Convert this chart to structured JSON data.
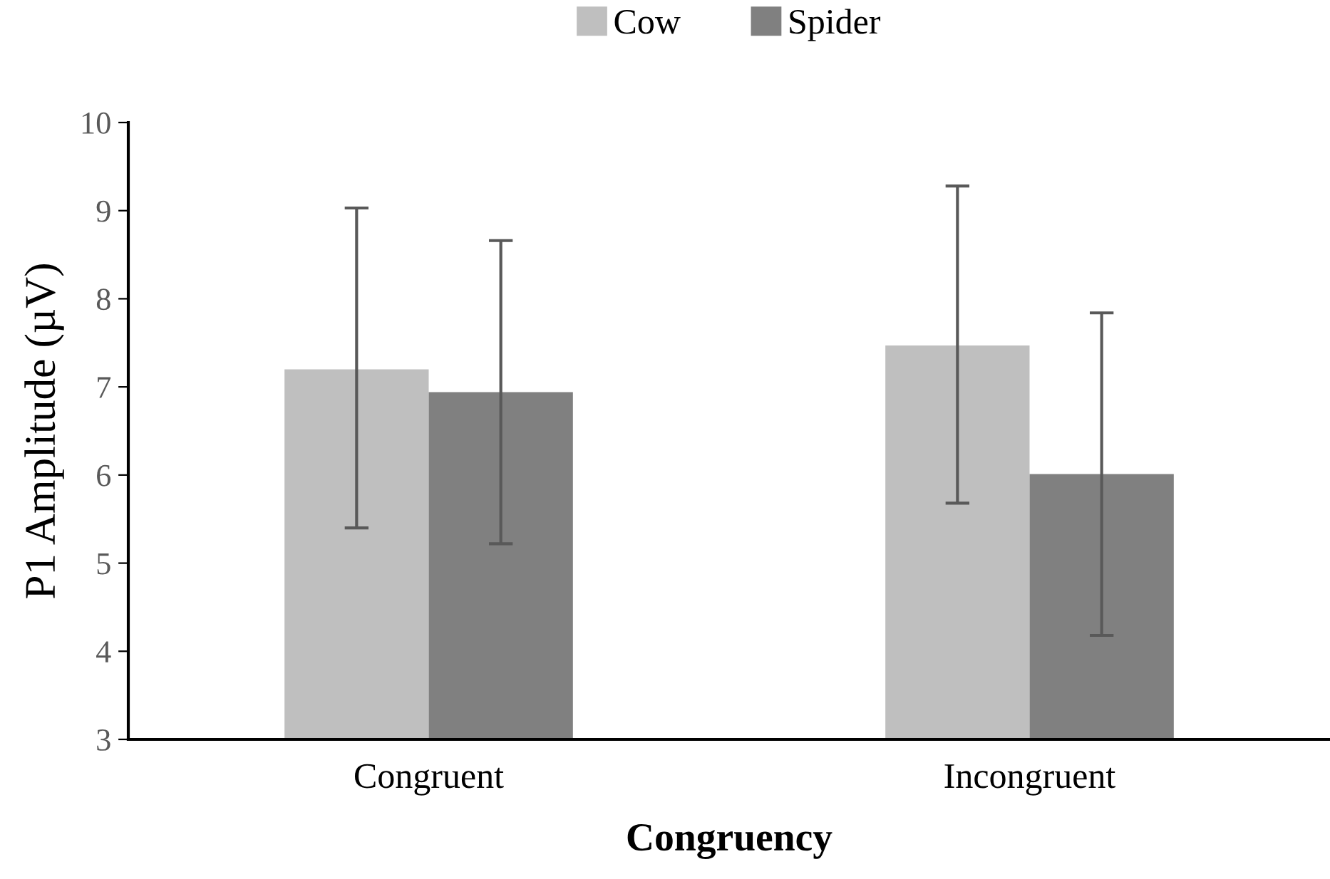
{
  "chart_data": {
    "type": "bar",
    "xlabel": "Congruency",
    "ylabel": "P1 Amplitude (µV)",
    "categories": [
      "Congruent",
      "Incongruent"
    ],
    "series": [
      {
        "name": "Cow",
        "color": "#bfbfbf",
        "values": [
          7.2,
          7.47
        ],
        "errors": [
          [
            5.4,
            9.03
          ],
          [
            5.68,
            9.28
          ]
        ]
      },
      {
        "name": "Spider",
        "color": "#808080",
        "values": [
          6.94,
          6.01
        ],
        "errors": [
          [
            5.22,
            8.66
          ],
          [
            4.18,
            7.84
          ]
        ]
      }
    ],
    "ylim": [
      3,
      10
    ],
    "yticks": [
      3,
      4,
      5,
      6,
      7,
      8,
      9,
      10
    ],
    "grid": false,
    "legend": "top"
  }
}
